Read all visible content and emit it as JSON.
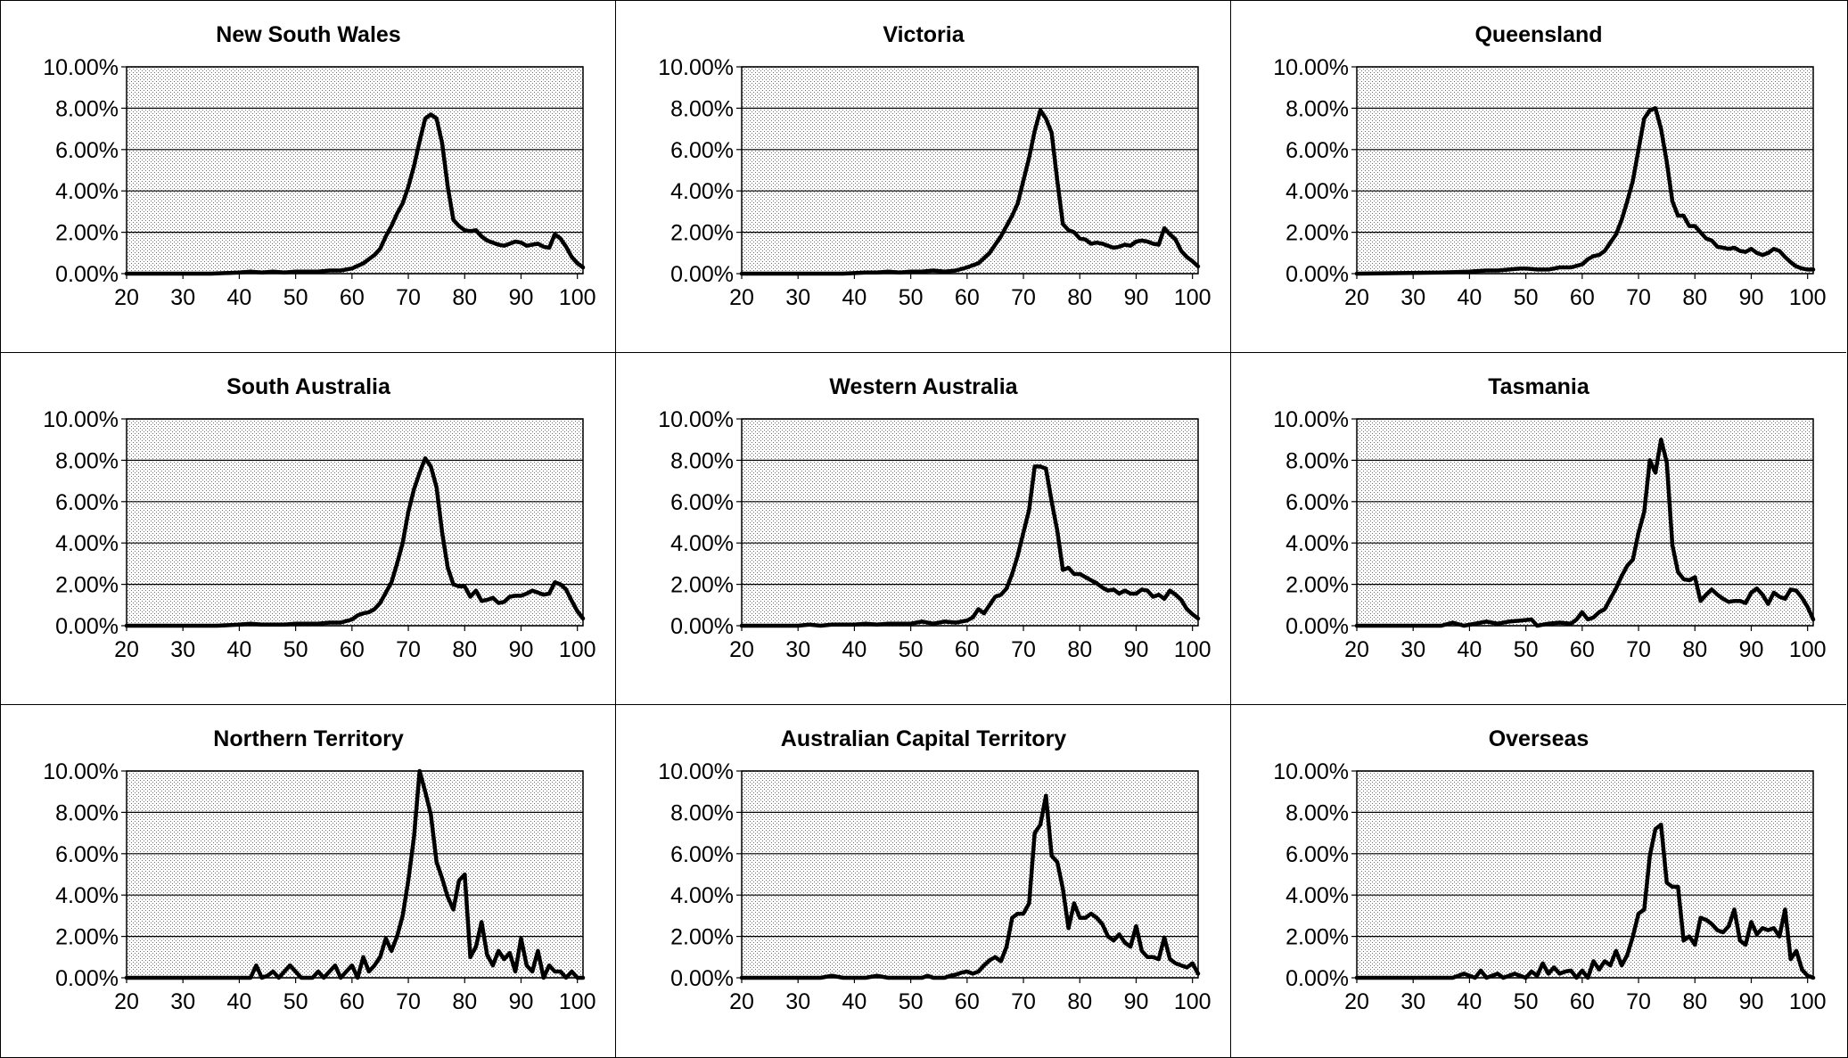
{
  "colors": {
    "line": "#000000",
    "plot_fill": "#d9d9d9",
    "gridline": "#000000",
    "background": "#ffffff"
  },
  "chart_data": [
    {
      "type": "line",
      "title": "New South Wales",
      "xlim": [
        20,
        101
      ],
      "ylim": [
        0,
        10
      ],
      "xticks": [
        20,
        30,
        40,
        50,
        60,
        70,
        80,
        90,
        100
      ],
      "ytick_labels": [
        "0.00%",
        "2.00%",
        "4.00%",
        "6.00%",
        "8.00%",
        "10.00%"
      ],
      "grid": true,
      "x": [
        20,
        35,
        40,
        42,
        44,
        46,
        48,
        50,
        52,
        54,
        56,
        58,
        60,
        62,
        64,
        65,
        66,
        67,
        68,
        69,
        70,
        71,
        72,
        73,
        74,
        75,
        76,
        77,
        78,
        79,
        80,
        81,
        82,
        83,
        84,
        85,
        86,
        87,
        88,
        89,
        90,
        91,
        92,
        93,
        94,
        95,
        96,
        97,
        98,
        99,
        100,
        101
      ],
      "y": [
        0.0,
        0.0,
        0.05,
        0.1,
        0.05,
        0.1,
        0.05,
        0.1,
        0.1,
        0.1,
        0.15,
        0.15,
        0.25,
        0.5,
        0.9,
        1.2,
        1.8,
        2.3,
        2.9,
        3.4,
        4.2,
        5.2,
        6.4,
        7.5,
        7.7,
        7.5,
        6.3,
        4.2,
        2.6,
        2.3,
        2.1,
        2.05,
        2.1,
        1.8,
        1.6,
        1.5,
        1.4,
        1.35,
        1.45,
        1.55,
        1.5,
        1.35,
        1.4,
        1.45,
        1.3,
        1.25,
        1.9,
        1.7,
        1.3,
        0.8,
        0.5,
        0.3
      ]
    },
    {
      "type": "line",
      "title": "Victoria",
      "xlim": [
        20,
        101
      ],
      "ylim": [
        0,
        10
      ],
      "xticks": [
        20,
        30,
        40,
        50,
        60,
        70,
        80,
        90,
        100
      ],
      "ytick_labels": [
        "0.00%",
        "2.00%",
        "4.00%",
        "6.00%",
        "8.00%",
        "10.00%"
      ],
      "grid": true,
      "x": [
        20,
        38,
        42,
        44,
        46,
        48,
        50,
        52,
        54,
        56,
        58,
        60,
        62,
        64,
        65,
        66,
        67,
        68,
        69,
        70,
        71,
        72,
        73,
        74,
        75,
        76,
        77,
        78,
        79,
        80,
        81,
        82,
        83,
        84,
        85,
        86,
        87,
        88,
        89,
        90,
        91,
        92,
        93,
        94,
        95,
        96,
        97,
        98,
        99,
        100,
        101
      ],
      "y": [
        0.0,
        0.0,
        0.05,
        0.05,
        0.1,
        0.05,
        0.1,
        0.1,
        0.15,
        0.1,
        0.15,
        0.3,
        0.5,
        1.0,
        1.4,
        1.8,
        2.3,
        2.8,
        3.4,
        4.5,
        5.6,
        6.9,
        7.9,
        7.5,
        6.8,
        4.5,
        2.4,
        2.1,
        2.0,
        1.7,
        1.65,
        1.45,
        1.5,
        1.45,
        1.35,
        1.25,
        1.3,
        1.4,
        1.35,
        1.55,
        1.6,
        1.55,
        1.45,
        1.4,
        2.2,
        1.9,
        1.65,
        1.1,
        0.8,
        0.6,
        0.35
      ]
    },
    {
      "type": "line",
      "title": "Queensland",
      "xlim": [
        20,
        101
      ],
      "ylim": [
        0,
        10
      ],
      "xticks": [
        20,
        30,
        40,
        50,
        60,
        70,
        80,
        90,
        100
      ],
      "ytick_labels": [
        "0.00%",
        "2.00%",
        "4.00%",
        "6.00%",
        "8.00%",
        "10.00%"
      ],
      "grid": true,
      "x": [
        20,
        35,
        40,
        43,
        45,
        47,
        49,
        50,
        52,
        54,
        56,
        58,
        60,
        61,
        62,
        63,
        64,
        65,
        66,
        67,
        68,
        69,
        70,
        71,
        72,
        73,
        74,
        75,
        76,
        77,
        78,
        79,
        80,
        81,
        82,
        83,
        84,
        85,
        86,
        87,
        88,
        89,
        90,
        91,
        92,
        93,
        94,
        95,
        96,
        97,
        98,
        99,
        100,
        101
      ],
      "y": [
        0.0,
        0.05,
        0.1,
        0.15,
        0.15,
        0.2,
        0.25,
        0.25,
        0.2,
        0.2,
        0.3,
        0.3,
        0.45,
        0.7,
        0.85,
        0.9,
        1.1,
        1.5,
        1.9,
        2.6,
        3.5,
        4.5,
        6.0,
        7.5,
        7.9,
        8.0,
        7.0,
        5.4,
        3.5,
        2.8,
        2.8,
        2.3,
        2.3,
        2.0,
        1.7,
        1.6,
        1.3,
        1.25,
        1.2,
        1.25,
        1.1,
        1.05,
        1.2,
        1.0,
        0.9,
        1.0,
        1.2,
        1.1,
        0.8,
        0.55,
        0.35,
        0.25,
        0.2,
        0.2
      ]
    },
    {
      "type": "line",
      "title": "South Australia",
      "xlim": [
        20,
        101
      ],
      "ylim": [
        0,
        10
      ],
      "xticks": [
        20,
        30,
        40,
        50,
        60,
        70,
        80,
        90,
        100
      ],
      "ytick_labels": [
        "0.00%",
        "2.00%",
        "4.00%",
        "6.00%",
        "8.00%",
        "10.00%"
      ],
      "grid": true,
      "x": [
        20,
        36,
        40,
        42,
        44,
        46,
        48,
        50,
        52,
        54,
        56,
        58,
        60,
        61,
        62,
        63,
        64,
        65,
        66,
        67,
        68,
        69,
        70,
        71,
        72,
        73,
        74,
        75,
        76,
        77,
        78,
        79,
        80,
        81,
        82,
        83,
        84,
        85,
        86,
        87,
        88,
        89,
        90,
        91,
        92,
        93,
        94,
        95,
        96,
        97,
        98,
        99,
        100,
        101
      ],
      "y": [
        0.0,
        0.0,
        0.05,
        0.1,
        0.05,
        0.05,
        0.05,
        0.1,
        0.1,
        0.1,
        0.15,
        0.15,
        0.3,
        0.5,
        0.6,
        0.65,
        0.8,
        1.1,
        1.6,
        2.1,
        3.0,
        4.0,
        5.5,
        6.6,
        7.4,
        8.1,
        7.7,
        6.7,
        4.5,
        2.8,
        2.0,
        1.9,
        1.9,
        1.4,
        1.7,
        1.2,
        1.25,
        1.35,
        1.1,
        1.15,
        1.4,
        1.45,
        1.45,
        1.55,
        1.7,
        1.6,
        1.5,
        1.55,
        2.1,
        2.0,
        1.75,
        1.2,
        0.7,
        0.35
      ]
    },
    {
      "type": "line",
      "title": "Western Australia",
      "xlim": [
        20,
        101
      ],
      "ylim": [
        0,
        10
      ],
      "xticks": [
        20,
        30,
        40,
        50,
        60,
        70,
        80,
        90,
        100
      ],
      "ytick_labels": [
        "0.00%",
        "2.00%",
        "4.00%",
        "6.00%",
        "8.00%",
        "10.00%"
      ],
      "grid": true,
      "x": [
        20,
        30,
        32,
        34,
        36,
        38,
        40,
        42,
        44,
        46,
        48,
        50,
        52,
        54,
        56,
        58,
        60,
        61,
        62,
        63,
        64,
        65,
        66,
        67,
        68,
        69,
        70,
        71,
        72,
        73,
        74,
        75,
        76,
        77,
        78,
        79,
        80,
        81,
        82,
        83,
        84,
        85,
        86,
        87,
        88,
        89,
        90,
        91,
        92,
        93,
        94,
        95,
        96,
        97,
        98,
        99,
        100,
        101
      ],
      "y": [
        0.0,
        0.0,
        0.05,
        0.0,
        0.05,
        0.05,
        0.05,
        0.1,
        0.05,
        0.1,
        0.1,
        0.1,
        0.2,
        0.1,
        0.2,
        0.15,
        0.25,
        0.4,
        0.8,
        0.6,
        1.0,
        1.4,
        1.5,
        1.8,
        2.5,
        3.4,
        4.5,
        5.6,
        7.7,
        7.7,
        7.6,
        6.0,
        4.6,
        2.7,
        2.8,
        2.5,
        2.5,
        2.35,
        2.2,
        2.05,
        1.85,
        1.7,
        1.75,
        1.55,
        1.7,
        1.55,
        1.55,
        1.75,
        1.7,
        1.4,
        1.5,
        1.3,
        1.7,
        1.5,
        1.25,
        0.8,
        0.55,
        0.35
      ]
    },
    {
      "type": "line",
      "title": "Tasmania",
      "xlim": [
        20,
        101
      ],
      "ylim": [
        0,
        10
      ],
      "xticks": [
        20,
        30,
        40,
        50,
        60,
        70,
        80,
        90,
        100
      ],
      "ytick_labels": [
        "0.00%",
        "2.00%",
        "4.00%",
        "6.00%",
        "8.00%",
        "10.00%"
      ],
      "grid": true,
      "x": [
        20,
        35,
        37,
        39,
        41,
        43,
        45,
        47,
        49,
        51,
        52,
        54,
        56,
        58,
        59,
        60,
        61,
        62,
        63,
        64,
        65,
        66,
        67,
        68,
        69,
        70,
        71,
        72,
        73,
        74,
        75,
        76,
        77,
        78,
        79,
        80,
        81,
        82,
        83,
        84,
        85,
        86,
        87,
        88,
        89,
        90,
        91,
        92,
        93,
        94,
        95,
        96,
        97,
        98,
        99,
        100,
        101
      ],
      "y": [
        0.0,
        0.0,
        0.15,
        0.0,
        0.1,
        0.2,
        0.1,
        0.2,
        0.25,
        0.3,
        0.0,
        0.1,
        0.15,
        0.1,
        0.3,
        0.65,
        0.3,
        0.4,
        0.65,
        0.8,
        1.3,
        1.8,
        2.4,
        2.9,
        3.2,
        4.5,
        5.5,
        8.0,
        7.4,
        9.0,
        7.9,
        3.9,
        2.6,
        2.25,
        2.2,
        2.35,
        1.2,
        1.5,
        1.75,
        1.5,
        1.3,
        1.15,
        1.2,
        1.2,
        1.1,
        1.6,
        1.8,
        1.5,
        1.05,
        1.6,
        1.4,
        1.3,
        1.75,
        1.7,
        1.35,
        0.9,
        0.3
      ]
    },
    {
      "type": "line",
      "title": "Northern Territory",
      "xlim": [
        20,
        101
      ],
      "ylim": [
        0,
        10
      ],
      "xticks": [
        20,
        30,
        40,
        50,
        60,
        70,
        80,
        90,
        100
      ],
      "ytick_labels": [
        "0.00%",
        "2.00%",
        "4.00%",
        "6.00%",
        "8.00%",
        "10.00%"
      ],
      "grid": true,
      "x": [
        20,
        42,
        43,
        44,
        45,
        46,
        47,
        48,
        49,
        50,
        51,
        52,
        53,
        54,
        55,
        56,
        57,
        58,
        59,
        60,
        61,
        62,
        63,
        64,
        65,
        66,
        67,
        68,
        69,
        70,
        71,
        72,
        73,
        74,
        75,
        76,
        77,
        78,
        79,
        80,
        81,
        82,
        83,
        84,
        85,
        86,
        87,
        88,
        89,
        90,
        91,
        92,
        93,
        94,
        95,
        96,
        97,
        98,
        99,
        100,
        101
      ],
      "y": [
        0.0,
        0.0,
        0.6,
        0.0,
        0.1,
        0.3,
        0.0,
        0.3,
        0.6,
        0.3,
        0.0,
        0.0,
        0.0,
        0.3,
        0.0,
        0.3,
        0.6,
        0.0,
        0.3,
        0.6,
        0.0,
        1.0,
        0.3,
        0.6,
        1.0,
        1.9,
        1.3,
        2.0,
        3.0,
        4.7,
        6.8,
        10.0,
        9.0,
        7.9,
        5.6,
        4.8,
        3.9,
        3.3,
        4.7,
        5.0,
        1.0,
        1.5,
        2.7,
        1.1,
        0.6,
        1.3,
        0.9,
        1.2,
        0.3,
        1.9,
        0.6,
        0.3,
        1.3,
        0.0,
        0.6,
        0.3,
        0.3,
        0.0,
        0.3,
        0.0,
        0.0
      ]
    },
    {
      "type": "line",
      "title": "Australian Capital Territory",
      "xlim": [
        20,
        101
      ],
      "ylim": [
        0,
        10
      ],
      "xticks": [
        20,
        30,
        40,
        50,
        60,
        70,
        80,
        90,
        100
      ],
      "ytick_labels": [
        "0.00%",
        "2.00%",
        "4.00%",
        "6.00%",
        "8.00%",
        "10.00%"
      ],
      "grid": true,
      "x": [
        20,
        34,
        36,
        38,
        42,
        44,
        46,
        48,
        52,
        53,
        54,
        56,
        57,
        58,
        59,
        60,
        61,
        62,
        63,
        64,
        65,
        66,
        67,
        68,
        69,
        70,
        71,
        72,
        73,
        74,
        75,
        76,
        77,
        78,
        79,
        80,
        81,
        82,
        83,
        84,
        85,
        86,
        87,
        88,
        89,
        90,
        91,
        92,
        93,
        94,
        95,
        96,
        97,
        98,
        99,
        100,
        101
      ],
      "y": [
        0.0,
        0.0,
        0.1,
        0.0,
        0.0,
        0.1,
        0.0,
        0.0,
        0.0,
        0.1,
        0.0,
        0.0,
        0.1,
        0.15,
        0.25,
        0.3,
        0.2,
        0.3,
        0.6,
        0.85,
        1.0,
        0.8,
        1.5,
        2.9,
        3.1,
        3.1,
        3.6,
        7.0,
        7.4,
        8.8,
        5.9,
        5.6,
        4.3,
        2.4,
        3.6,
        2.9,
        2.9,
        3.1,
        2.9,
        2.6,
        2.0,
        1.8,
        2.1,
        1.7,
        1.5,
        2.5,
        1.3,
        1.0,
        1.0,
        0.9,
        1.95,
        0.9,
        0.7,
        0.6,
        0.5,
        0.7,
        0.2
      ]
    },
    {
      "type": "line",
      "title": "Overseas",
      "xlim": [
        20,
        101
      ],
      "ylim": [
        0,
        10
      ],
      "xticks": [
        20,
        30,
        40,
        50,
        60,
        70,
        80,
        90,
        100
      ],
      "ytick_labels": [
        "0.00%",
        "2.00%",
        "4.00%",
        "6.00%",
        "8.00%",
        "10.00%"
      ],
      "grid": true,
      "x": [
        20,
        37,
        38,
        39,
        40,
        41,
        42,
        43,
        44,
        45,
        46,
        47,
        48,
        49,
        50,
        51,
        52,
        53,
        54,
        55,
        56,
        57,
        58,
        59,
        60,
        61,
        62,
        63,
        64,
        65,
        66,
        67,
        68,
        69,
        70,
        71,
        72,
        73,
        74,
        75,
        76,
        77,
        78,
        79,
        80,
        81,
        82,
        83,
        84,
        85,
        86,
        87,
        88,
        89,
        90,
        91,
        92,
        93,
        94,
        95,
        96,
        97,
        98,
        99,
        100,
        101
      ],
      "y": [
        0.0,
        0.0,
        0.1,
        0.2,
        0.1,
        0.0,
        0.35,
        0.0,
        0.1,
        0.2,
        0.0,
        0.1,
        0.2,
        0.1,
        0.0,
        0.3,
        0.1,
        0.7,
        0.2,
        0.5,
        0.2,
        0.3,
        0.35,
        0.0,
        0.35,
        0.0,
        0.8,
        0.4,
        0.8,
        0.6,
        1.3,
        0.6,
        1.1,
        2.0,
        3.1,
        3.3,
        5.9,
        7.2,
        7.4,
        4.6,
        4.4,
        4.4,
        1.8,
        2.0,
        1.6,
        2.9,
        2.8,
        2.6,
        2.3,
        2.2,
        2.5,
        3.3,
        1.8,
        1.6,
        2.7,
        2.1,
        2.4,
        2.3,
        2.4,
        2.0,
        3.3,
        0.9,
        1.3,
        0.4,
        0.1,
        0.0
      ]
    }
  ]
}
